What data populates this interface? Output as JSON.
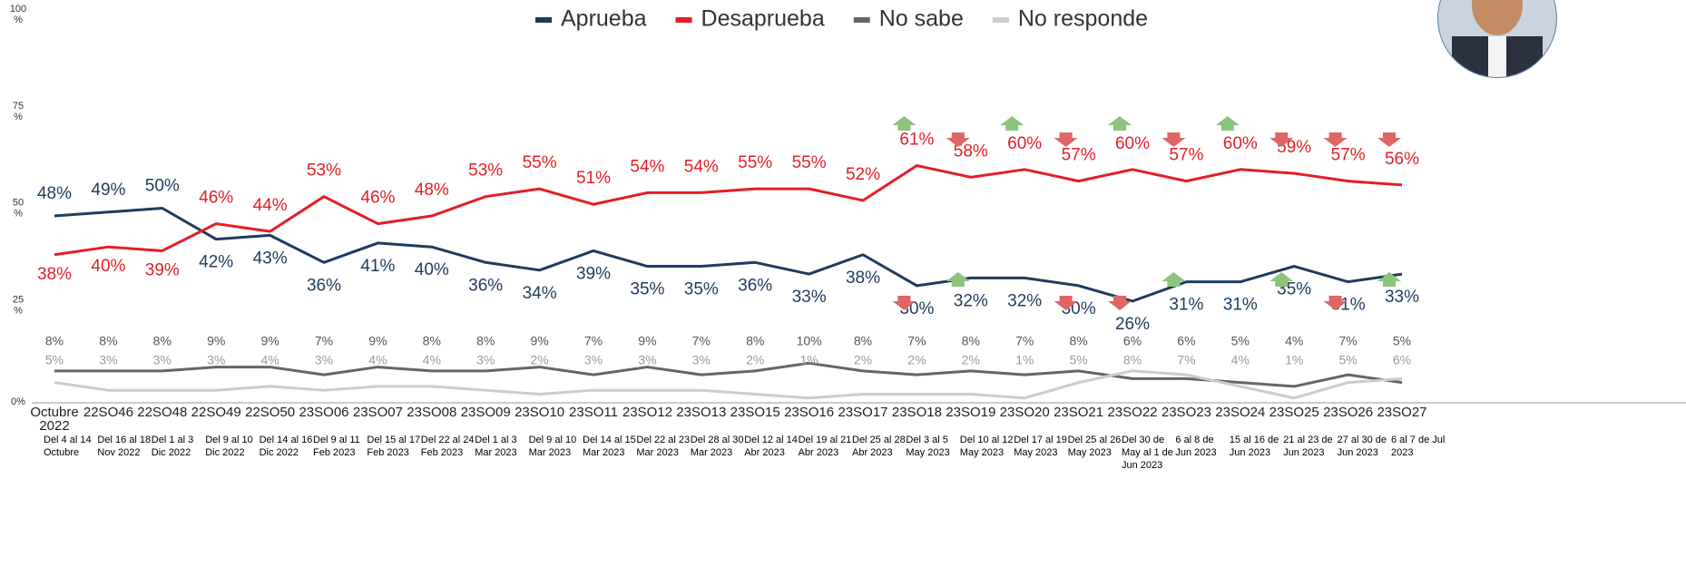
{
  "chart_data": {
    "type": "line",
    "categories": [
      "Octubre 2022",
      "22SO46",
      "22SO48",
      "22SO49",
      "22SO50",
      "23SO06",
      "23SO07",
      "23SO08",
      "23SO09",
      "23SO10",
      "23SO11",
      "23SO12",
      "23SO13",
      "23SO15",
      "23SO16",
      "23SO17",
      "23SO18",
      "23SO19",
      "23SO20",
      "23SO21",
      "23SO22",
      "23SO23",
      "23SO24",
      "23SO25",
      "23SO26",
      "23SO27"
    ],
    "date_labels": [
      "Del 4 al 14 Octubre",
      "Del 16 al 18 Nov 2022",
      "Del 1 al 3 Dic 2022",
      "Del 9 al 10 Dic 2022",
      "Del 14 al 16 Dic 2022",
      "Del 9 al 11 Feb 2023",
      "Del 15 al 17 Feb 2023",
      "Del 22 al 24 Feb 2023",
      "Del 1 al 3 Mar 2023",
      "Del 9 al 10 Mar 2023",
      "Del 14 al 15 Mar 2023",
      "Del 22 al 23 Mar 2023",
      "Del 28 al 30 Mar 2023",
      "Del 12 al 14 Abr 2023",
      "Del 19 al 21 Abr 2023",
      "Del 25 al 28 Abr 2023",
      "Del 3 al 5 May 2023",
      "Del 10 al 12 May 2023",
      "Del 17 al 19 May 2023",
      "Del 25 al 26 May 2023",
      "Del 30 de May al 1 de Jun 2023",
      "6 al 8 de Jun 2023",
      "15 al 16 de Jun 2023",
      "21 al 23 de Jun 2023",
      "27 al 30 de Jun 2023",
      "6 al 7 de Jul 2023"
    ],
    "series": [
      {
        "name": "Aprueba",
        "color": "#1f3b5e",
        "values": [
          48,
          49,
          50,
          42,
          43,
          36,
          41,
          40,
          36,
          34,
          39,
          35,
          35,
          36,
          33,
          38,
          30,
          32,
          32,
          30,
          26,
          31,
          31,
          35,
          31,
          33
        ],
        "value_labels": [
          "48%",
          "49%",
          "50%",
          "42%",
          "43%",
          "36%",
          "41%",
          "40%",
          "36%",
          "34%",
          "39%",
          "35%",
          "35%",
          "36%",
          "33%",
          "38%",
          "30%",
          "32%",
          "32%",
          "30%",
          "26%",
          "31%",
          "31%",
          "35%",
          "31%",
          "33%"
        ]
      },
      {
        "name": "Desaprueba",
        "color": "#e31e24",
        "values": [
          38,
          40,
          39,
          46,
          44,
          53,
          46,
          48,
          53,
          55,
          51,
          54,
          54,
          55,
          55,
          52,
          61,
          58,
          60,
          57,
          60,
          57,
          60,
          59,
          57,
          56
        ],
        "value_labels": [
          "38%",
          "40%",
          "39%",
          "46%",
          "44%",
          "53%",
          "46%",
          "48%",
          "53%",
          "55%",
          "51%",
          "54%",
          "54%",
          "55%",
          "55%",
          "52%",
          "61%",
          "58%",
          "60%",
          "57%",
          "60%",
          "57%",
          "60%",
          "59%",
          "57%",
          "56%"
        ]
      },
      {
        "name": "No sabe",
        "color": "#666666",
        "values": [
          8,
          8,
          8,
          9,
          9,
          7,
          9,
          8,
          8,
          9,
          7,
          9,
          7,
          8,
          10,
          8,
          7,
          8,
          7,
          8,
          6,
          6,
          5,
          4,
          7,
          5
        ],
        "value_labels": [
          "8%",
          "8%",
          "8%",
          "9%",
          "9%",
          "7%",
          "9%",
          "8%",
          "8%",
          "9%",
          "7%",
          "9%",
          "7%",
          "8%",
          "10%",
          "8%",
          "7%",
          "8%",
          "7%",
          "8%",
          "6%",
          "6%",
          "5%",
          "4%",
          "7%",
          "5%"
        ]
      },
      {
        "name": "No responde",
        "color": "#cccccc",
        "values": [
          5,
          3,
          3,
          3,
          4,
          3,
          4,
          4,
          3,
          2,
          3,
          3,
          3,
          2,
          1,
          2,
          2,
          2,
          1,
          5,
          8,
          7,
          4,
          1,
          5,
          6
        ],
        "value_labels": [
          "5%",
          "3%",
          "3%",
          "3%",
          "4%",
          "3%",
          "4%",
          "4%",
          "3%",
          "2%",
          "3%",
          "3%",
          "3%",
          "2%",
          "1%",
          "2%",
          "2%",
          "2%",
          "1%",
          "5%",
          "8%",
          "7%",
          "4%",
          "1%",
          "5%",
          "6%"
        ]
      }
    ],
    "ylim": [
      0,
      100
    ],
    "yticks": [
      {
        "value": 0,
        "label": "0%"
      },
      {
        "value": 25,
        "label": "25 %"
      },
      {
        "value": 50,
        "label": "50 %"
      },
      {
        "value": 75,
        "label": "75 %"
      },
      {
        "value": 100,
        "label": "100 %"
      }
    ]
  }
}
